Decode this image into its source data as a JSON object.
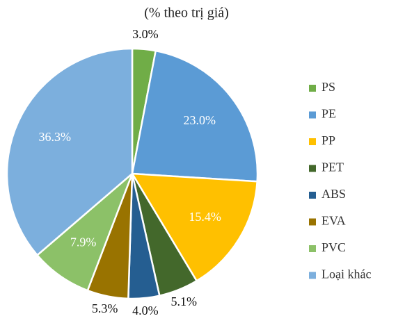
{
  "chart_data": {
    "type": "pie",
    "subtitle": "(% theo trị giá)",
    "categories": [
      "PS",
      "PE",
      "PP",
      "PET",
      "ABS",
      "EVA",
      "PVC",
      "Loại khác"
    ],
    "values": [
      3.0,
      23.0,
      15.4,
      5.1,
      4.0,
      5.3,
      7.9,
      36.3
    ],
    "value_labels": [
      "3.0%",
      "23.0%",
      "15.4%",
      "5.1%",
      "4.0%",
      "5.3%",
      "7.9%",
      "36.3%"
    ],
    "colors": [
      "#70ad47",
      "#5b9bd5",
      "#ffc000",
      "#43682b",
      "#255e91",
      "#997300",
      "#8cc168",
      "#7cafdd"
    ],
    "legend": "right"
  }
}
